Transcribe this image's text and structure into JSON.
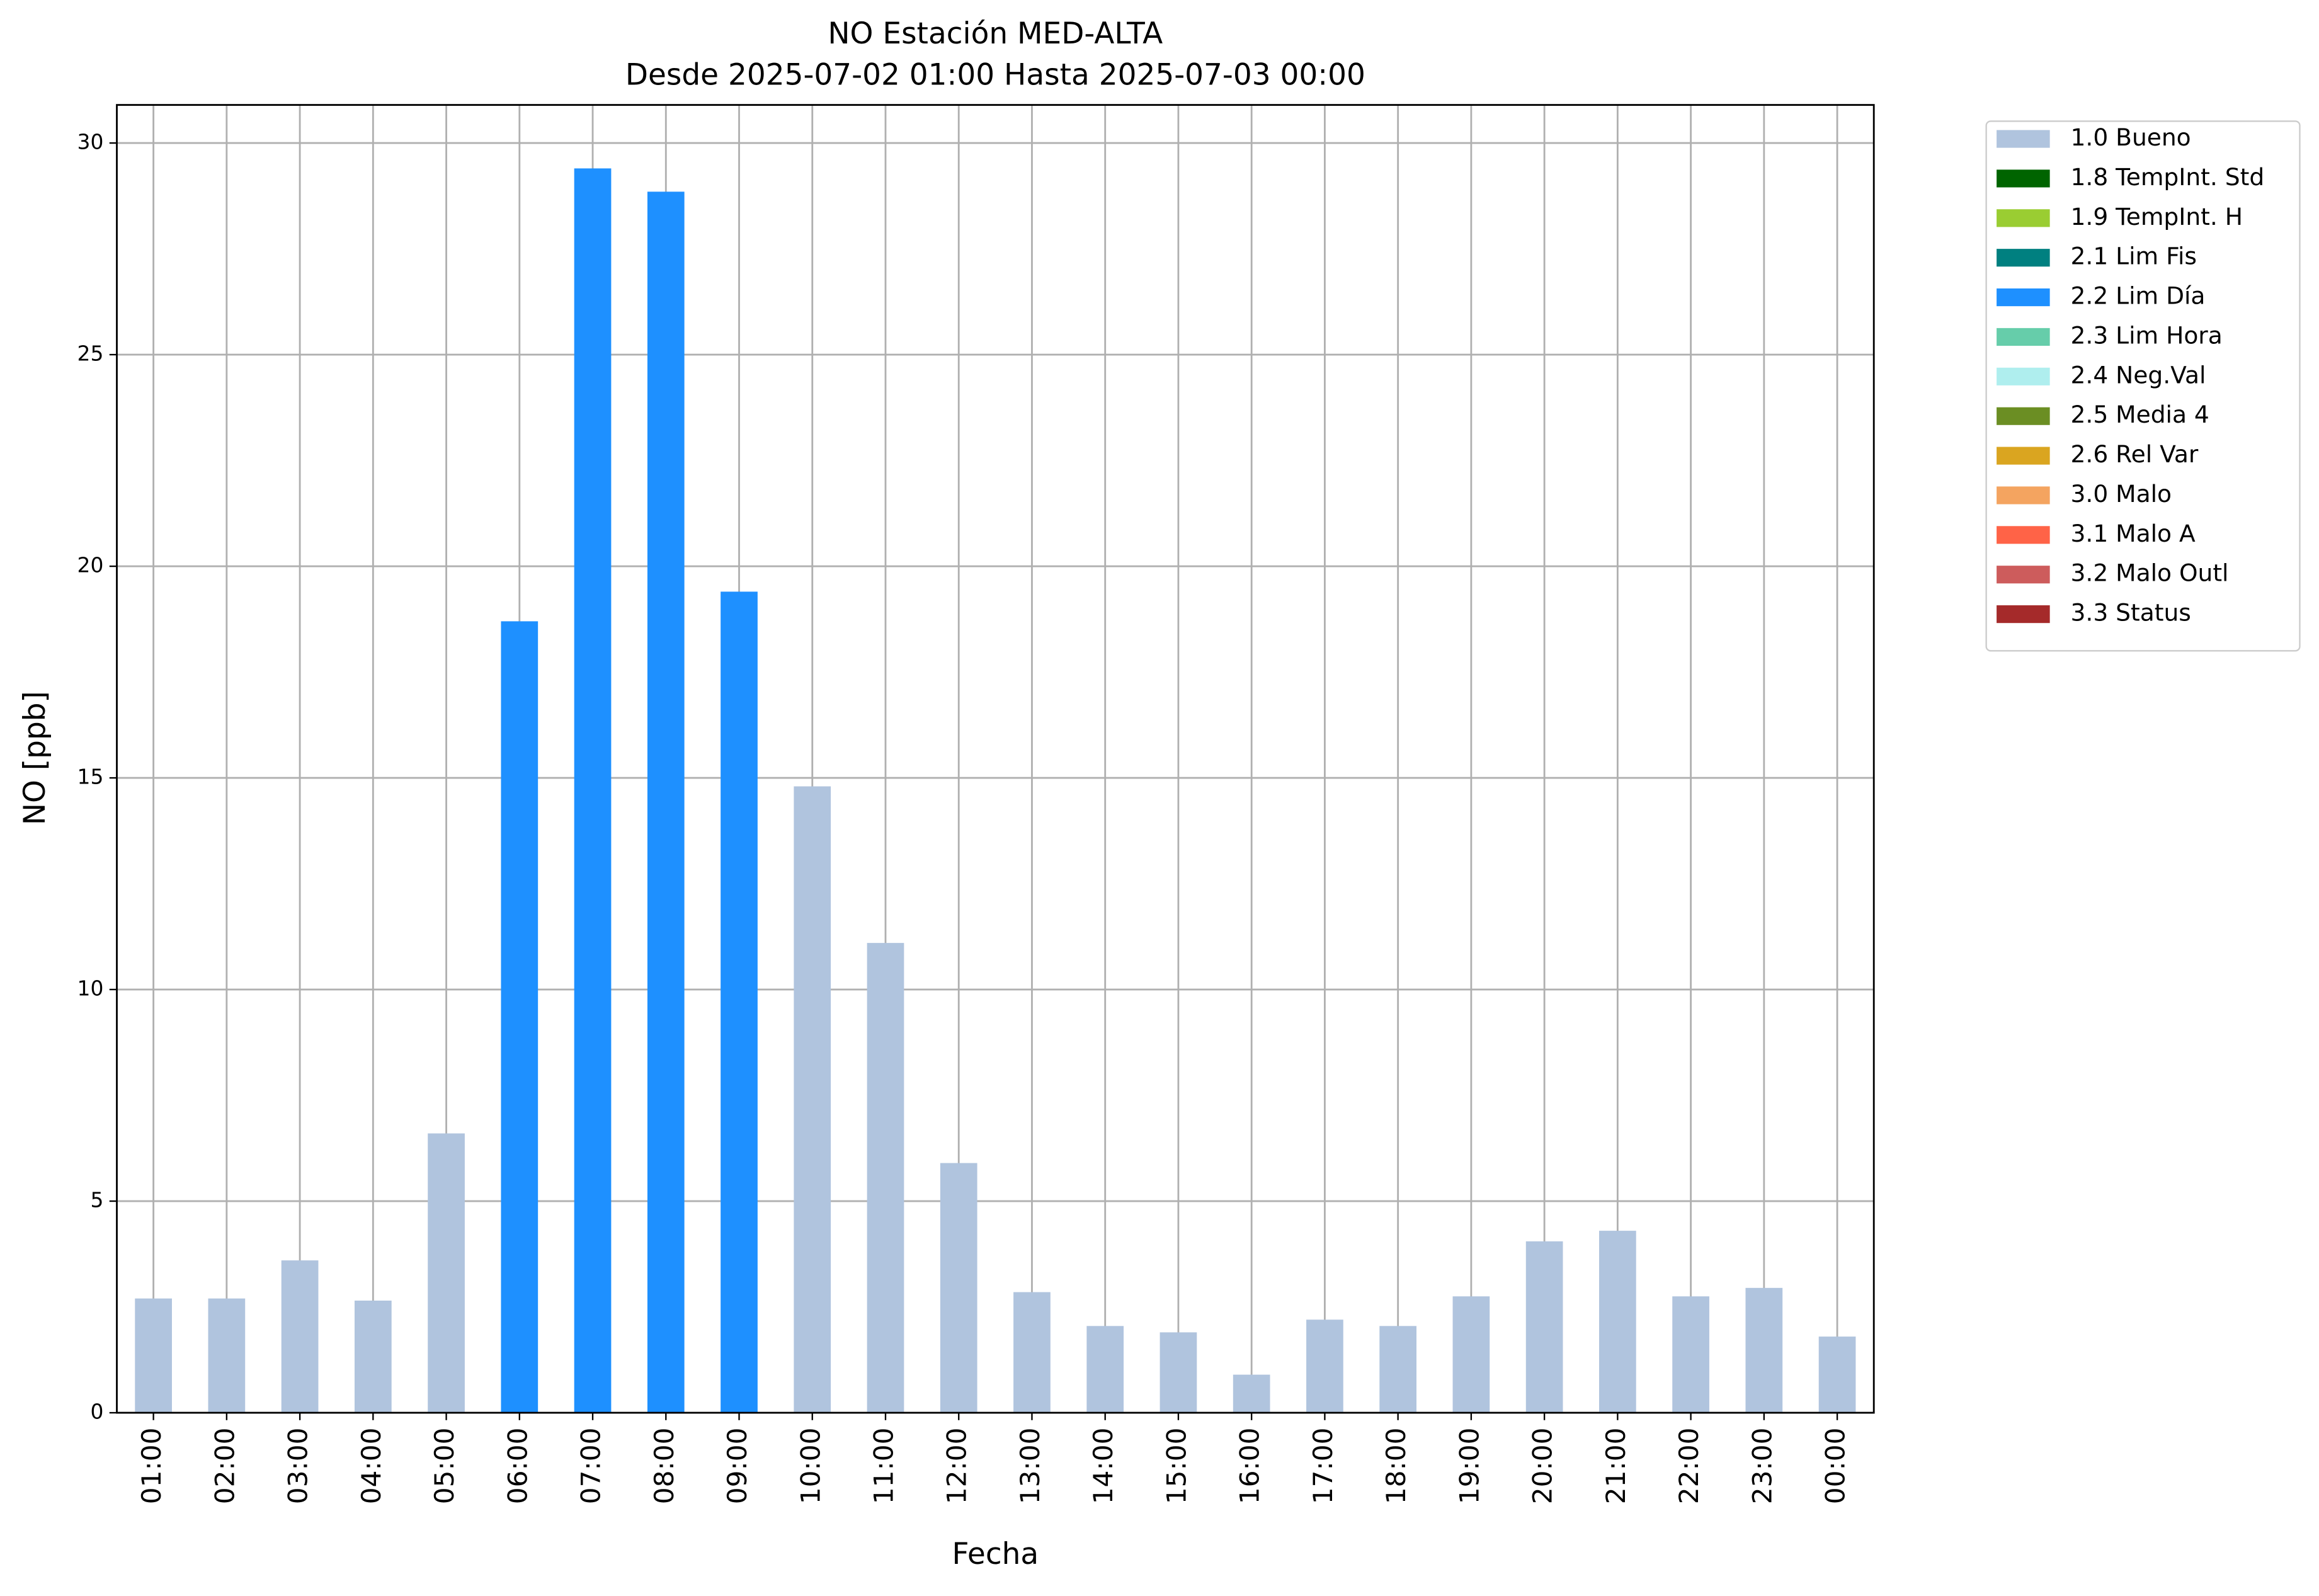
{
  "chart_data": {
    "type": "bar",
    "stacked": true,
    "title": "NO Estación MED-ALTA",
    "subtitle": "Desde 2025-07-02 01:00 Hasta 2025-07-03 00:00",
    "x_label": "Fecha",
    "y_label": "NO [ppb]",
    "categories": [
      "01:00",
      "02:00",
      "03:00",
      "04:00",
      "05:00",
      "06:00",
      "07:00",
      "08:00",
      "09:00",
      "10:00",
      "11:00",
      "12:00",
      "13:00",
      "14:00",
      "15:00",
      "16:00",
      "17:00",
      "18:00",
      "19:00",
      "20:00",
      "21:00",
      "22:00",
      "23:00",
      "00:00"
    ],
    "ylim": [
      0,
      30.9
    ],
    "yticks": [
      0,
      5,
      10,
      15,
      20,
      25,
      30
    ],
    "grid": true,
    "legend_position": "outside-right",
    "series": [
      {
        "name": "1.0 Bueno",
        "color": "#b0c4de",
        "values": [
          2.7,
          2.7,
          3.6,
          2.65,
          6.6,
          null,
          null,
          null,
          null,
          14.8,
          11.1,
          5.9,
          2.85,
          2.05,
          1.9,
          0.9,
          2.2,
          2.05,
          2.75,
          4.05,
          4.3,
          2.75,
          2.95,
          1.8
        ]
      },
      {
        "name": "1.8 TempInt. Std",
        "color": "#006400",
        "values": [
          null,
          null,
          null,
          null,
          null,
          null,
          null,
          null,
          null,
          null,
          null,
          null,
          null,
          null,
          null,
          null,
          null,
          null,
          null,
          null,
          null,
          null,
          null,
          null
        ]
      },
      {
        "name": "1.9 TempInt. H",
        "color": "#9acd32",
        "values": [
          null,
          null,
          null,
          null,
          null,
          null,
          null,
          null,
          null,
          null,
          null,
          null,
          null,
          null,
          null,
          null,
          null,
          null,
          null,
          null,
          null,
          null,
          null,
          null
        ]
      },
      {
        "name": "2.1 Lim Fis",
        "color": "#008080",
        "values": [
          null,
          null,
          null,
          null,
          null,
          null,
          null,
          null,
          null,
          null,
          null,
          null,
          null,
          null,
          null,
          null,
          null,
          null,
          null,
          null,
          null,
          null,
          null,
          null
        ]
      },
      {
        "name": "2.2 Lim Día",
        "color": "#1e90ff",
        "values": [
          null,
          null,
          null,
          null,
          null,
          18.7,
          29.4,
          28.85,
          19.4,
          null,
          null,
          null,
          null,
          null,
          null,
          null,
          null,
          null,
          null,
          null,
          null,
          null,
          null,
          null
        ]
      },
      {
        "name": "2.3 Lim Hora",
        "color": "#66cdaa",
        "values": [
          null,
          null,
          null,
          null,
          null,
          null,
          null,
          null,
          null,
          null,
          null,
          null,
          null,
          null,
          null,
          null,
          null,
          null,
          null,
          null,
          null,
          null,
          null,
          null
        ]
      },
      {
        "name": "2.4 Neg.Val",
        "color": "#afeeee",
        "values": [
          null,
          null,
          null,
          null,
          null,
          null,
          null,
          null,
          null,
          null,
          null,
          null,
          null,
          null,
          null,
          null,
          null,
          null,
          null,
          null,
          null,
          null,
          null,
          null
        ]
      },
      {
        "name": "2.5 Media 4",
        "color": "#6b8e23",
        "values": [
          null,
          null,
          null,
          null,
          null,
          null,
          null,
          null,
          null,
          null,
          null,
          null,
          null,
          null,
          null,
          null,
          null,
          null,
          null,
          null,
          null,
          null,
          null,
          null
        ]
      },
      {
        "name": "2.6 Rel Var",
        "color": "#daa520",
        "values": [
          null,
          null,
          null,
          null,
          null,
          null,
          null,
          null,
          null,
          null,
          null,
          null,
          null,
          null,
          null,
          null,
          null,
          null,
          null,
          null,
          null,
          null,
          null,
          null
        ]
      },
      {
        "name": "3.0 Malo",
        "color": "#f4a460",
        "values": [
          null,
          null,
          null,
          null,
          null,
          null,
          null,
          null,
          null,
          null,
          null,
          null,
          null,
          null,
          null,
          null,
          null,
          null,
          null,
          null,
          null,
          null,
          null,
          null
        ]
      },
      {
        "name": "3.1 Malo A",
        "color": "#ff6347",
        "values": [
          null,
          null,
          null,
          null,
          null,
          null,
          null,
          null,
          null,
          null,
          null,
          null,
          null,
          null,
          null,
          null,
          null,
          null,
          null,
          null,
          null,
          null,
          null,
          null
        ]
      },
      {
        "name": "3.2 Malo Outl",
        "color": "#cd5c5c",
        "values": [
          null,
          null,
          null,
          null,
          null,
          null,
          null,
          null,
          null,
          null,
          null,
          null,
          null,
          null,
          null,
          null,
          null,
          null,
          null,
          null,
          null,
          null,
          null,
          null
        ]
      },
      {
        "name": "3.3 Status",
        "color": "#a52a2a",
        "values": [
          null,
          null,
          null,
          null,
          null,
          null,
          null,
          null,
          null,
          null,
          null,
          null,
          null,
          null,
          null,
          null,
          null,
          null,
          null,
          null,
          null,
          null,
          null,
          null
        ]
      }
    ]
  }
}
